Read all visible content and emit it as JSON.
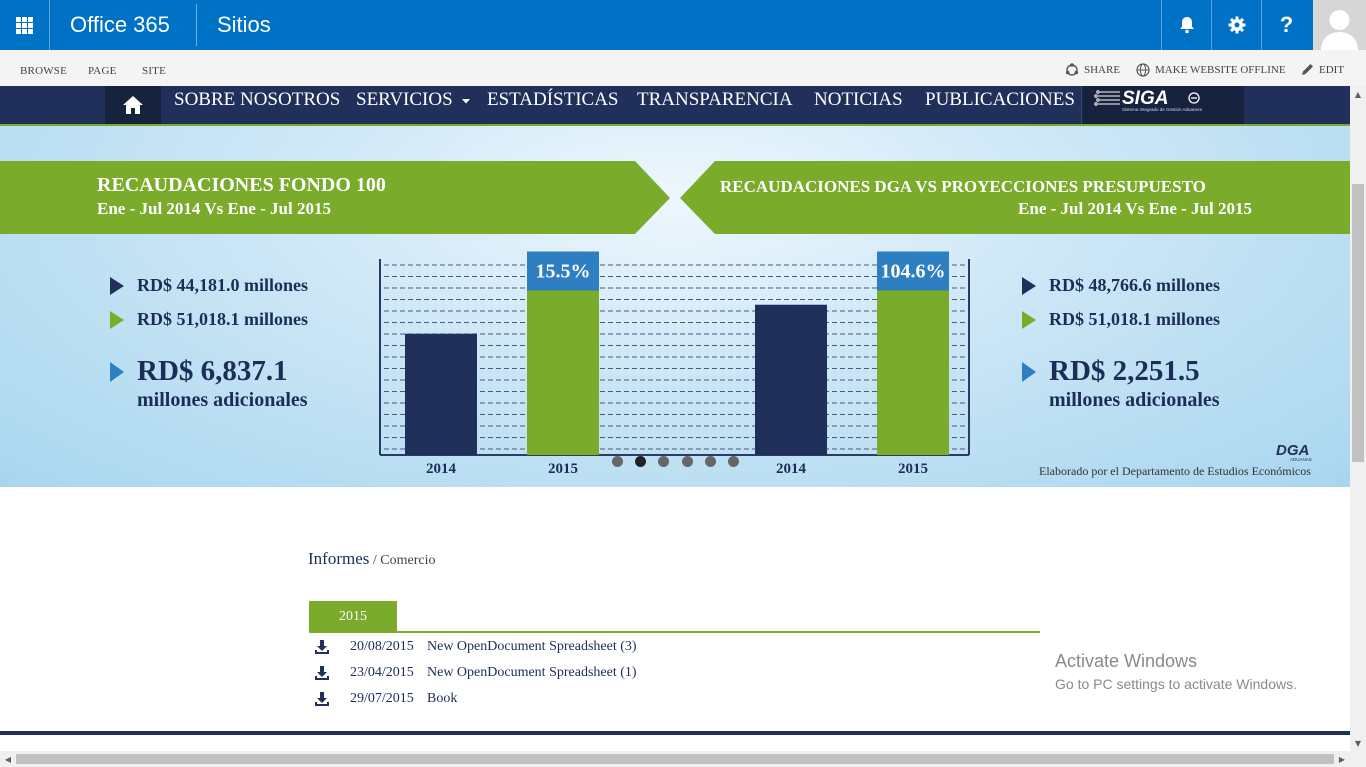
{
  "suite_bar": {
    "app_name": "Office 365",
    "section": "Sitios"
  },
  "ribbon": {
    "tabs": [
      "BROWSE",
      "PAGE",
      "SITE"
    ],
    "share": "SHARE",
    "offline": "MAKE WEBSITE OFFLINE",
    "edit": "EDIT"
  },
  "site_nav": {
    "items": [
      "SOBRE NOSOTROS",
      "SERVICIOS",
      "ESTADÍSTICAS",
      "TRANSPARENCIA",
      "NOTICIAS",
      "PUBLICACIONES"
    ],
    "logo_text": "SIGA",
    "logo_sub": "Sistema Integrado de Gestión Aduanera"
  },
  "banner": {
    "left_title": "RECAUDACIONES FONDO 100",
    "left_subtitle": "Ene - Jul 2014 Vs Ene - Jul 2015",
    "right_title": "RECAUDACIONES DGA VS PROYECCIONES PRESUPUESTO",
    "right_subtitle": "Ene - Jul 2014 Vs Ene - Jul 2015",
    "left_stats": [
      "RD$ 44,181.0 millones",
      "RD$ 51,018.1 millones"
    ],
    "left_big": "RD$ 6,837.1",
    "left_big_sub": "millones adicionales",
    "right_stats": [
      "RD$ 48,766.6 millones",
      "RD$ 51,018.1 millones"
    ],
    "right_big": "RD$ 2,251.5",
    "right_big_sub": "millones adicionales",
    "credit": "Elaborado por el Departamento de Estudios Económicos",
    "dga_logo": "DGA",
    "dga_logo_sub": "ADUANAS",
    "slides_total": 6,
    "slide_active": 2,
    "colors": {
      "navy": "#21305b",
      "green": "#7aab2a",
      "pct_box": "#2e7fc1"
    }
  },
  "chart_data": [
    {
      "type": "bar",
      "categories": [
        "2014",
        "2015"
      ],
      "values": [
        44181.0,
        51018.1
      ],
      "data_labels": [
        "",
        "15.5%"
      ],
      "colors": [
        "#21305b",
        "#7aab2a"
      ]
    },
    {
      "type": "bar",
      "categories": [
        "2014",
        "2015"
      ],
      "values": [
        48766.6,
        51018.1
      ],
      "data_labels": [
        "",
        "104.6%"
      ],
      "colors": [
        "#21305b",
        "#7aab2a"
      ]
    }
  ],
  "content": {
    "breadcrumb_parent": "Informes",
    "breadcrumb_sep": " / ",
    "breadcrumb_current": "Comercio",
    "year_tab": "2015",
    "files": [
      {
        "date": "20/08/2015",
        "name": "New OpenDocument Spreadsheet (3)"
      },
      {
        "date": "23/04/2015",
        "name": "New OpenDocument Spreadsheet (1)"
      },
      {
        "date": "29/07/2015",
        "name": "Book"
      }
    ]
  },
  "watermark": {
    "line1": "Activate Windows",
    "line2": "Go to PC settings to activate Windows."
  }
}
